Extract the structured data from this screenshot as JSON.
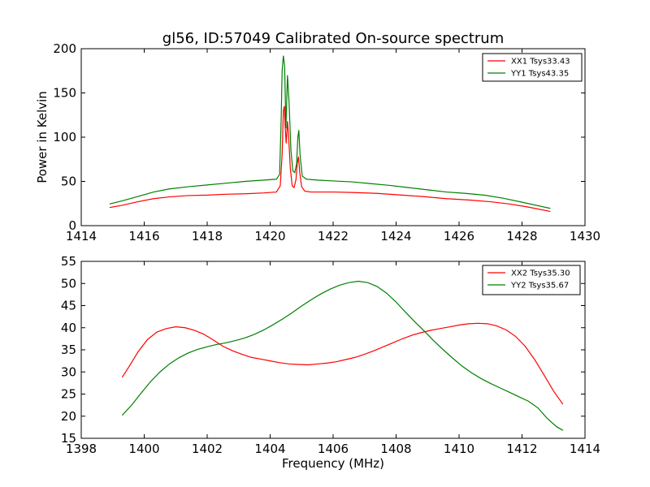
{
  "title": "gl56, ID:57049 Calibrated On-source spectrum",
  "colors": {
    "xx": "#ff0000",
    "yy": "#008000"
  },
  "chart_data": [
    {
      "type": "line",
      "title": "gl56, ID:57049 Calibrated On-source spectrum",
      "xlabel": "",
      "ylabel": "Power in Kelvin",
      "xlim": [
        1414,
        1430
      ],
      "ylim": [
        0,
        200
      ],
      "xticks": [
        1414,
        1416,
        1418,
        1420,
        1422,
        1424,
        1426,
        1428,
        1430
      ],
      "yticks": [
        0,
        50,
        100,
        150,
        200
      ],
      "legend_position": "top-right",
      "grid": false,
      "series": [
        {
          "name": "XX1 Tsys33.43",
          "color": "#ff0000",
          "points": [
            [
              1414.9,
              20.5
            ],
            [
              1415.3,
              23
            ],
            [
              1415.8,
              27
            ],
            [
              1416.3,
              30.5
            ],
            [
              1416.8,
              32.5
            ],
            [
              1417.4,
              34
            ],
            [
              1418.0,
              34.5
            ],
            [
              1418.6,
              35.5
            ],
            [
              1419.2,
              36
            ],
            [
              1419.8,
              37
            ],
            [
              1420.2,
              38
            ],
            [
              1420.32,
              45
            ],
            [
              1420.38,
              80
            ],
            [
              1420.42,
              130
            ],
            [
              1420.45,
              135
            ],
            [
              1420.48,
              110
            ],
            [
              1420.51,
              93
            ],
            [
              1420.55,
              118
            ],
            [
              1420.58,
              105
            ],
            [
              1420.64,
              65
            ],
            [
              1420.7,
              45
            ],
            [
              1420.76,
              43
            ],
            [
              1420.82,
              52
            ],
            [
              1420.86,
              70
            ],
            [
              1420.9,
              78
            ],
            [
              1420.94,
              60
            ],
            [
              1421.0,
              44
            ],
            [
              1421.1,
              39
            ],
            [
              1421.3,
              38
            ],
            [
              1422.0,
              38
            ],
            [
              1422.6,
              37.5
            ],
            [
              1423.4,
              36.5
            ],
            [
              1424.0,
              35
            ],
            [
              1424.8,
              33
            ],
            [
              1425.6,
              30.5
            ],
            [
              1426.3,
              29
            ],
            [
              1427.0,
              27
            ],
            [
              1427.6,
              24.5
            ],
            [
              1428.2,
              21
            ],
            [
              1428.9,
              16
            ]
          ]
        },
        {
          "name": "YY1 Tsys43.35",
          "color": "#008000",
          "points": [
            [
              1414.9,
              24.5
            ],
            [
              1415.3,
              28
            ],
            [
              1415.8,
              33
            ],
            [
              1416.3,
              38
            ],
            [
              1416.8,
              41.5
            ],
            [
              1417.4,
              44
            ],
            [
              1418.0,
              46
            ],
            [
              1418.6,
              48
            ],
            [
              1419.2,
              50
            ],
            [
              1419.8,
              51.5
            ],
            [
              1420.2,
              52.5
            ],
            [
              1420.3,
              58
            ],
            [
              1420.35,
              120
            ],
            [
              1420.38,
              175
            ],
            [
              1420.42,
              192
            ],
            [
              1420.46,
              180
            ],
            [
              1420.5,
              110
            ],
            [
              1420.55,
              170
            ],
            [
              1420.6,
              140
            ],
            [
              1420.66,
              85
            ],
            [
              1420.72,
              62
            ],
            [
              1420.78,
              60
            ],
            [
              1420.84,
              70
            ],
            [
              1420.88,
              100
            ],
            [
              1420.91,
              108
            ],
            [
              1420.95,
              80
            ],
            [
              1421.02,
              56
            ],
            [
              1421.15,
              52.5
            ],
            [
              1421.5,
              51.5
            ],
            [
              1422.0,
              50.5
            ],
            [
              1422.6,
              49.5
            ],
            [
              1423.2,
              47.5
            ],
            [
              1423.8,
              45.5
            ],
            [
              1424.4,
              43
            ],
            [
              1425.0,
              40.5
            ],
            [
              1425.6,
              38
            ],
            [
              1426.2,
              36.5
            ],
            [
              1426.8,
              34.5
            ],
            [
              1427.4,
              31
            ],
            [
              1428.0,
              26.5
            ],
            [
              1428.9,
              19.5
            ]
          ]
        }
      ]
    },
    {
      "type": "line",
      "title": "",
      "xlabel": "Frequency (MHz)",
      "ylabel": "",
      "xlim": [
        1398,
        1414
      ],
      "ylim": [
        15,
        55
      ],
      "xticks": [
        1398,
        1400,
        1402,
        1404,
        1406,
        1408,
        1410,
        1412,
        1414
      ],
      "yticks": [
        15,
        20,
        25,
        30,
        35,
        40,
        45,
        50,
        55
      ],
      "legend_position": "top-right",
      "grid": false,
      "series": [
        {
          "name": "XX2 Tsys35.30",
          "color": "#ff0000",
          "points": [
            [
              1399.3,
              28.8
            ],
            [
              1399.5,
              31
            ],
            [
              1399.8,
              34.5
            ],
            [
              1400.1,
              37.3
            ],
            [
              1400.4,
              39
            ],
            [
              1400.7,
              39.8
            ],
            [
              1401.0,
              40.2
            ],
            [
              1401.3,
              40
            ],
            [
              1401.6,
              39.4
            ],
            [
              1401.9,
              38.5
            ],
            [
              1402.2,
              37.2
            ],
            [
              1402.5,
              35.8
            ],
            [
              1402.8,
              34.8
            ],
            [
              1403.1,
              34
            ],
            [
              1403.4,
              33.3
            ],
            [
              1403.7,
              32.9
            ],
            [
              1404.0,
              32.5
            ],
            [
              1404.3,
              32.1
            ],
            [
              1404.6,
              31.8
            ],
            [
              1404.9,
              31.7
            ],
            [
              1405.2,
              31.6
            ],
            [
              1405.5,
              31.8
            ],
            [
              1405.8,
              32
            ],
            [
              1406.1,
              32.3
            ],
            [
              1406.4,
              32.8
            ],
            [
              1406.7,
              33.3
            ],
            [
              1407.0,
              34
            ],
            [
              1407.3,
              34.8
            ],
            [
              1407.6,
              35.7
            ],
            [
              1407.9,
              36.6
            ],
            [
              1408.2,
              37.5
            ],
            [
              1408.5,
              38.3
            ],
            [
              1408.8,
              38.9
            ],
            [
              1409.1,
              39.4
            ],
            [
              1409.4,
              39.8
            ],
            [
              1409.7,
              40.2
            ],
            [
              1410.0,
              40.6
            ],
            [
              1410.3,
              40.9
            ],
            [
              1410.6,
              41
            ],
            [
              1410.9,
              40.9
            ],
            [
              1411.2,
              40.4
            ],
            [
              1411.5,
              39.5
            ],
            [
              1411.8,
              38
            ],
            [
              1412.1,
              35.8
            ],
            [
              1412.4,
              32.8
            ],
            [
              1412.7,
              29.3
            ],
            [
              1413.0,
              25.7
            ],
            [
              1413.3,
              22.7
            ]
          ]
        },
        {
          "name": "YY2 Tsys35.67",
          "color": "#008000",
          "points": [
            [
              1399.3,
              20.2
            ],
            [
              1399.6,
              22.5
            ],
            [
              1399.9,
              25.2
            ],
            [
              1400.2,
              27.8
            ],
            [
              1400.5,
              30
            ],
            [
              1400.8,
              31.8
            ],
            [
              1401.1,
              33.2
            ],
            [
              1401.4,
              34.3
            ],
            [
              1401.7,
              35.1
            ],
            [
              1402.0,
              35.7
            ],
            [
              1402.3,
              36.2
            ],
            [
              1402.6,
              36.6
            ],
            [
              1402.9,
              37.1
            ],
            [
              1403.2,
              37.7
            ],
            [
              1403.5,
              38.5
            ],
            [
              1403.8,
              39.5
            ],
            [
              1404.1,
              40.7
            ],
            [
              1404.4,
              42
            ],
            [
              1404.7,
              43.4
            ],
            [
              1405.0,
              44.9
            ],
            [
              1405.3,
              46.3
            ],
            [
              1405.6,
              47.6
            ],
            [
              1405.9,
              48.7
            ],
            [
              1406.2,
              49.6
            ],
            [
              1406.5,
              50.2
            ],
            [
              1406.8,
              50.5
            ],
            [
              1407.1,
              50.2
            ],
            [
              1407.4,
              49.3
            ],
            [
              1407.7,
              47.8
            ],
            [
              1408.0,
              45.8
            ],
            [
              1408.3,
              43.5
            ],
            [
              1408.6,
              41.3
            ],
            [
              1408.9,
              39.2
            ],
            [
              1409.2,
              37
            ],
            [
              1409.5,
              35
            ],
            [
              1409.8,
              33.1
            ],
            [
              1410.1,
              31.3
            ],
            [
              1410.4,
              29.8
            ],
            [
              1410.7,
              28.5
            ],
            [
              1411.0,
              27.4
            ],
            [
              1411.3,
              26.4
            ],
            [
              1411.6,
              25.4
            ],
            [
              1411.9,
              24.4
            ],
            [
              1412.2,
              23.4
            ],
            [
              1412.5,
              21.9
            ],
            [
              1412.8,
              19.5
            ],
            [
              1413.1,
              17.6
            ],
            [
              1413.3,
              16.8
            ]
          ]
        }
      ]
    }
  ]
}
